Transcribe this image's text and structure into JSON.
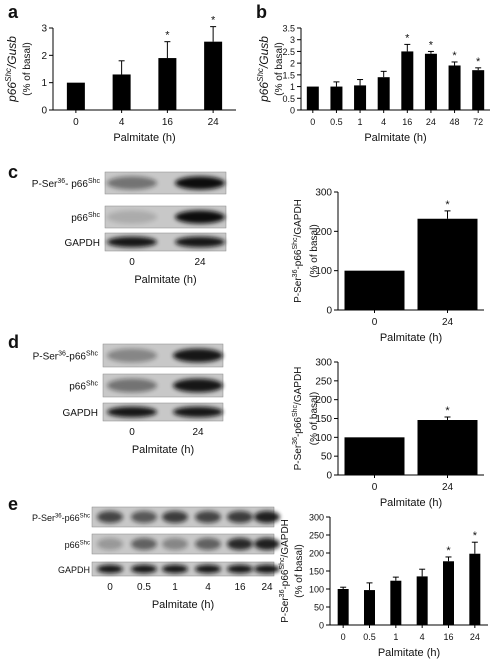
{
  "panel_labels": [
    "a",
    "b",
    "c",
    "d",
    "e"
  ],
  "significance_marker": "*",
  "bar_color": "#000000",
  "blots": {
    "c": {
      "rows": [
        "P-Ser36- p66Shc",
        "p66Shc",
        "GAPDH"
      ],
      "lanes": [
        "0",
        "24"
      ],
      "xlabel": "Palmitate (h)"
    },
    "d": {
      "rows": [
        "P-Ser36-p66Shc",
        "p66Shc",
        "GAPDH"
      ],
      "lanes": [
        "0",
        "24"
      ],
      "xlabel": "Palmitate (h)"
    },
    "e": {
      "rows": [
        "P-Ser36-p66Shc",
        "p66Shc",
        "GAPDH"
      ],
      "lanes": [
        "0",
        "0.5",
        "1",
        "4",
        "16",
        "24"
      ],
      "xlabel": "Palmitate (h)"
    }
  },
  "chart_data": [
    {
      "panel": "a",
      "type": "bar",
      "categories": [
        "0",
        "4",
        "16",
        "24"
      ],
      "values": [
        1.0,
        1.3,
        1.9,
        2.5
      ],
      "errors": [
        0,
        0.5,
        0.6,
        0.55
      ],
      "significant": [
        false,
        false,
        true,
        true
      ],
      "ylabel_main": "p66Shc/Gusb",
      "ylabel_sub": "(% of basal)",
      "xlabel": "Palmitate (h)",
      "ylim": [
        0,
        3
      ],
      "yticks": [
        0,
        1,
        2,
        3
      ]
    },
    {
      "panel": "b",
      "type": "bar",
      "categories": [
        "0",
        "0.5",
        "1",
        "4",
        "16",
        "24",
        "48",
        "72"
      ],
      "values": [
        1.0,
        1.0,
        1.05,
        1.4,
        2.5,
        2.4,
        1.9,
        1.7
      ],
      "errors": [
        0,
        0.2,
        0.25,
        0.25,
        0.3,
        0.1,
        0.15,
        0.1
      ],
      "significant": [
        false,
        false,
        false,
        false,
        true,
        true,
        true,
        true
      ],
      "ylabel_main": "p66Shc/Gusb",
      "ylabel_sub": "(% of basal)",
      "xlabel": "Palmitate (h)",
      "ylim": [
        0,
        3.5
      ],
      "yticks": [
        0,
        0.5,
        1,
        1.5,
        2,
        2.5,
        3,
        3.5
      ]
    },
    {
      "panel": "c",
      "type": "bar",
      "categories": [
        "0",
        "24"
      ],
      "values": [
        100,
        232
      ],
      "errors": [
        0,
        20
      ],
      "significant": [
        false,
        true
      ],
      "ylabel_main": "P-Ser36-p66Shc/GAPDH",
      "ylabel_sub": "(% of basal)",
      "xlabel": "Palmitate (h)",
      "ylim": [
        0,
        300
      ],
      "yticks": [
        0,
        100,
        200,
        300
      ]
    },
    {
      "panel": "d",
      "type": "bar",
      "categories": [
        "0",
        "24"
      ],
      "values": [
        100,
        146
      ],
      "errors": [
        0,
        8
      ],
      "significant": [
        false,
        true
      ],
      "ylabel_main": "P-Ser36-p66Shc/GAPDH",
      "ylabel_sub": "(% of basal)",
      "xlabel": "Palmitate (h)",
      "ylim": [
        0,
        300
      ],
      "yticks": [
        0,
        50,
        100,
        150,
        200,
        250,
        300
      ]
    },
    {
      "panel": "e",
      "type": "bar",
      "categories": [
        "0",
        "0.5",
        "1",
        "4",
        "16",
        "24"
      ],
      "values": [
        100,
        97,
        123,
        135,
        177,
        198
      ],
      "errors": [
        5,
        20,
        10,
        20,
        12,
        32
      ],
      "significant": [
        false,
        false,
        false,
        false,
        true,
        true
      ],
      "ylabel_main": "P-Ser36-p66Shc/GAPDH",
      "ylabel_sub": "(% of basal)",
      "xlabel": "Palmitate (h)",
      "ylim": [
        0,
        300
      ],
      "yticks": [
        0,
        50,
        100,
        150,
        200,
        250,
        300
      ]
    }
  ]
}
